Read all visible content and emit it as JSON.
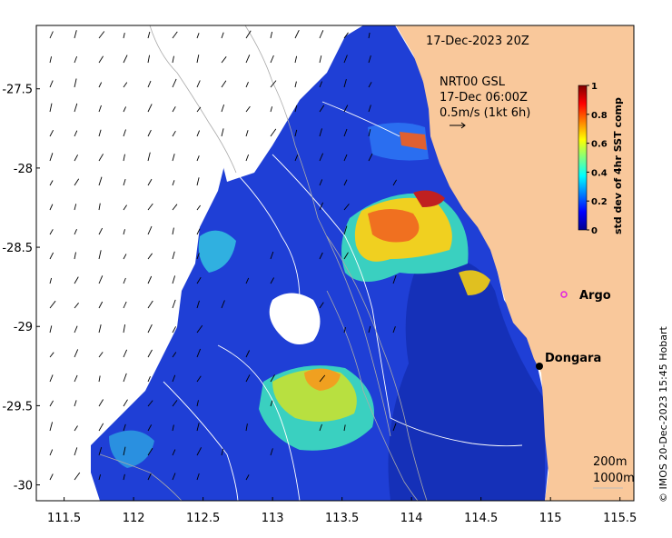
{
  "map": {
    "timestamp": "17-Dec-2023 20Z",
    "wind_source": "NRT00 GSL",
    "wind_time": "17-Dec 06:00Z",
    "wind_scale": "0.5m/s (1kt 6h)",
    "credit": "© IMOS 20-Dec-2023 15:45 Hobart",
    "lon_range": [
      111.3,
      115.6
    ],
    "lat_range": [
      -30.1,
      -27.1
    ],
    "x_ticks": [
      "111.5",
      "112",
      "112.5",
      "113",
      "113.5",
      "114",
      "114.5",
      "115",
      "115.5"
    ],
    "x_tick_values": [
      111.5,
      112,
      112.5,
      113,
      113.5,
      114,
      114.5,
      115,
      115.5
    ],
    "y_ticks": [
      "-27.5",
      "-28",
      "-28.5",
      "-29",
      "-29.5",
      "-30"
    ],
    "y_tick_values": [
      -27.5,
      -28,
      -28.5,
      -29,
      -29.5,
      -30
    ],
    "land_color": "#f9c89b",
    "places": [
      {
        "name": "Argo",
        "lon": 115.0,
        "lat": -28.87,
        "marker": "magenta-circle"
      },
      {
        "name": "Dongara",
        "lon": 114.93,
        "lat": -29.25,
        "marker": "black-dot"
      }
    ],
    "contours": [
      "200m",
      "1000m"
    ]
  },
  "colorbar": {
    "title": "std dev of 4hr SST comp",
    "min": 0,
    "max": 1,
    "tick_labels": [
      "0",
      "0.2",
      "0.4",
      "0.6",
      "0.8",
      "1"
    ],
    "tick_values": [
      0,
      0.2,
      0.4,
      0.6,
      0.8,
      1
    ],
    "colormap": "jet",
    "colors": [
      "#00008f",
      "#0000ff",
      "#0080ff",
      "#00ffff",
      "#80ff80",
      "#ffff00",
      "#ff8000",
      "#ff0000",
      "#800000"
    ]
  }
}
